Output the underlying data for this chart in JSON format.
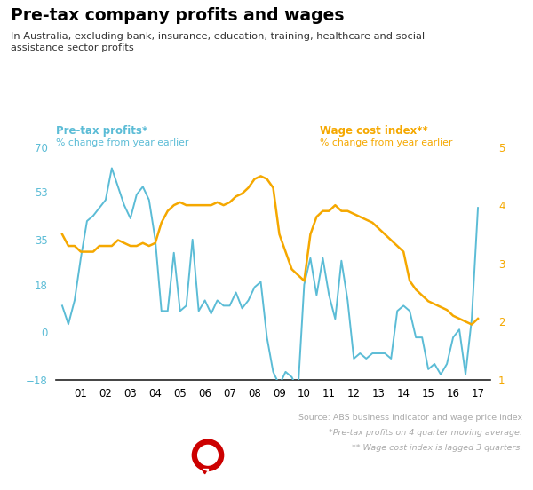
{
  "title": "Pre-tax company profits and wages",
  "subtitle": "In Australia, excluding bank, insurance, education, training, healthcare and social\nassistance sector profits",
  "left_label_bold": "Pre-tax profits*",
  "left_label_sub": "% change from year earlier",
  "right_label_bold": "Wage cost index**",
  "right_label_sub": "% change from year earlier",
  "source_text": "Source: ABS business indicator and wage price index",
  "footnote1": "*Pre-tax profits on 4 quarter moving average.",
  "footnote2": "** Wage cost index is lagged 3 quarters.",
  "left_color": "#5BBCD6",
  "right_color": "#F5A800",
  "title_color": "#000000",
  "left_ylim": [
    -18,
    70
  ],
  "right_ylim": [
    1.0,
    5.0
  ],
  "left_yticks": [
    -18,
    0,
    18,
    35,
    53,
    70
  ],
  "right_yticks": [
    1.0,
    2.0,
    3.0,
    4.0,
    5.0
  ],
  "xtick_labels": [
    "01",
    "02",
    "03",
    "04",
    "05",
    "06",
    "07",
    "08",
    "09",
    "10",
    "11",
    "12",
    "13",
    "14",
    "15",
    "16",
    "17"
  ],
  "profits_x": [
    2000.25,
    2000.5,
    2000.75,
    2001.0,
    2001.25,
    2001.5,
    2001.75,
    2002.0,
    2002.25,
    2002.5,
    2002.75,
    2003.0,
    2003.25,
    2003.5,
    2003.75,
    2004.0,
    2004.25,
    2004.5,
    2004.75,
    2005.0,
    2005.25,
    2005.5,
    2005.75,
    2006.0,
    2006.25,
    2006.5,
    2006.75,
    2007.0,
    2007.25,
    2007.5,
    2007.75,
    2008.0,
    2008.25,
    2008.5,
    2008.75,
    2009.0,
    2009.25,
    2009.5,
    2009.75,
    2010.0,
    2010.25,
    2010.5,
    2010.75,
    2011.0,
    2011.25,
    2011.5,
    2011.75,
    2012.0,
    2012.25,
    2012.5,
    2012.75,
    2013.0,
    2013.25,
    2013.5,
    2013.75,
    2014.0,
    2014.25,
    2014.5,
    2014.75,
    2015.0,
    2015.25,
    2015.5,
    2015.75,
    2016.0,
    2016.25,
    2016.5,
    2016.75,
    2017.0
  ],
  "profits_y": [
    10,
    3,
    12,
    28,
    42,
    44,
    47,
    50,
    62,
    55,
    48,
    43,
    52,
    55,
    50,
    35,
    8,
    8,
    30,
    8,
    10,
    35,
    8,
    12,
    7,
    12,
    10,
    10,
    15,
    9,
    12,
    17,
    19,
    -2,
    -15,
    -20,
    -15,
    -17,
    -22,
    18,
    28,
    14,
    28,
    14,
    5,
    27,
    12,
    -10,
    -8,
    -10,
    -8,
    -8,
    -8,
    -10,
    8,
    10,
    8,
    -2,
    -2,
    -14,
    -12,
    -16,
    -12,
    -2,
    1,
    -16,
    5,
    47
  ],
  "wages_x": [
    2000.25,
    2000.5,
    2000.75,
    2001.0,
    2001.25,
    2001.5,
    2001.75,
    2002.0,
    2002.25,
    2002.5,
    2002.75,
    2003.0,
    2003.25,
    2003.5,
    2003.75,
    2004.0,
    2004.25,
    2004.5,
    2004.75,
    2005.0,
    2005.25,
    2005.5,
    2005.75,
    2006.0,
    2006.25,
    2006.5,
    2006.75,
    2007.0,
    2007.25,
    2007.5,
    2007.75,
    2008.0,
    2008.25,
    2008.5,
    2008.75,
    2009.0,
    2009.25,
    2009.5,
    2009.75,
    2010.0,
    2010.25,
    2010.5,
    2010.75,
    2011.0,
    2011.25,
    2011.5,
    2011.75,
    2012.0,
    2012.25,
    2012.5,
    2012.75,
    2013.0,
    2013.25,
    2013.5,
    2013.75,
    2014.0,
    2014.25,
    2014.5,
    2014.75,
    2015.0,
    2015.25,
    2015.5,
    2015.75,
    2016.0,
    2016.25,
    2016.5,
    2016.75,
    2017.0
  ],
  "wages_y": [
    3.5,
    3.3,
    3.3,
    3.2,
    3.2,
    3.2,
    3.3,
    3.3,
    3.3,
    3.4,
    3.35,
    3.3,
    3.3,
    3.35,
    3.3,
    3.35,
    3.7,
    3.9,
    4.0,
    4.05,
    4.0,
    4.0,
    4.0,
    4.0,
    4.0,
    4.05,
    4.0,
    4.05,
    4.15,
    4.2,
    4.3,
    4.45,
    4.5,
    4.45,
    4.3,
    3.5,
    3.2,
    2.9,
    2.8,
    2.7,
    3.5,
    3.8,
    3.9,
    3.9,
    4.0,
    3.9,
    3.9,
    3.85,
    3.8,
    3.75,
    3.7,
    3.6,
    3.5,
    3.4,
    3.3,
    3.2,
    2.7,
    2.55,
    2.45,
    2.35,
    2.3,
    2.25,
    2.2,
    2.1,
    2.05,
    2.0,
    1.95,
    2.05
  ],
  "logo_color": "#CC0000",
  "footnote_color": "#aaaaaa",
  "bg_color": "#ffffff"
}
